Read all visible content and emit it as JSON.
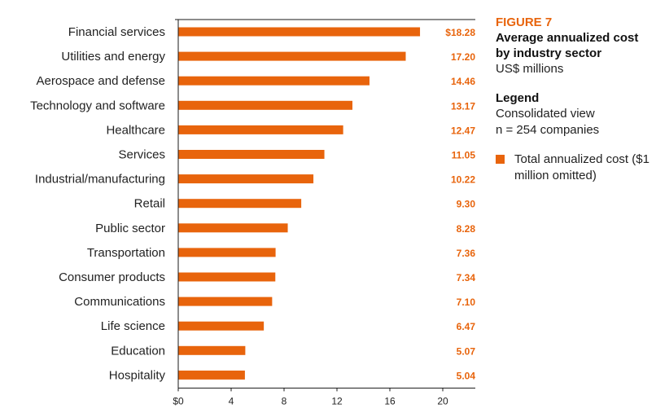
{
  "figure": {
    "label": "FIGURE 7",
    "title": "Average annualized cost by industry sector",
    "subtitle": "US$ millions"
  },
  "legend": {
    "heading": "Legend",
    "lines": [
      "Consolidated view",
      "n = 254 companies"
    ],
    "item": "Total annualized cost ($1 million omitted)",
    "color": "#e8640c"
  },
  "chart_data": {
    "type": "bar",
    "orientation": "horizontal",
    "title": "Average annualized cost by industry sector",
    "xlabel": "US$ millions",
    "ylabel": "",
    "xlim": [
      0,
      22
    ],
    "xticks": [
      0,
      4,
      8,
      12,
      16,
      20
    ],
    "xtick_labels": [
      "$0",
      "4",
      "8",
      "12",
      "16",
      "20"
    ],
    "grid": false,
    "legend_position": "right",
    "series": [
      {
        "name": "Total annualized cost ($1 million omitted)",
        "color": "#e8640c"
      }
    ],
    "categories": [
      "Financial services",
      "Utilities and energy",
      "Aerospace and defense",
      "Technology and software",
      "Healthcare",
      "Services",
      "Industrial/manufacturing",
      "Retail",
      "Public sector",
      "Transportation",
      "Consumer products",
      "Communications",
      "Life science",
      "Education",
      "Hospitality"
    ],
    "values": [
      18.28,
      17.2,
      14.46,
      13.17,
      12.47,
      11.05,
      10.22,
      9.3,
      8.28,
      7.36,
      7.34,
      7.1,
      6.47,
      5.07,
      5.04
    ],
    "value_labels": [
      "$18.28",
      "17.20",
      "14.46",
      "13.17",
      "12.47",
      "11.05",
      "10.22",
      "9.30",
      "8.28",
      "7.36",
      "7.34",
      "7.10",
      "6.47",
      "5.07",
      "5.04"
    ]
  }
}
